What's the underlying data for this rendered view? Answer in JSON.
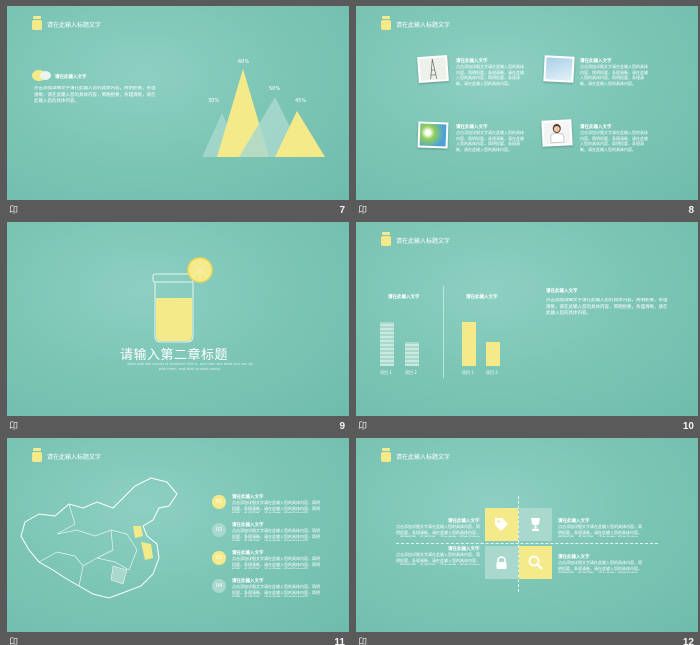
{
  "colors": {
    "teal": "#7dc6b6",
    "yellow": "#f5ea8a",
    "pale_teal": "#a9d8cd",
    "white": "#ffffff"
  },
  "header_title": "请在此输入标题文字",
  "filler_text": "点击添加详细文字请在此输入您的具体内容，简明扼要，条理清晰，请在此输入您的具体内容，简明扼要，条理清晰，请在此输入您的具体内容。",
  "slides": [
    {
      "page": "7",
      "label": "请在此输入文字",
      "percents": [
        "60%",
        "30%",
        "50%",
        "45%"
      ]
    },
    {
      "page": "8",
      "items": [
        {
          "title": "请在此输入文字",
          "photo": "eiffel-tower-sketch"
        },
        {
          "title": "请在此输入文字",
          "photo": "sky"
        },
        {
          "title": "请在此输入文字",
          "photo": "flowers"
        },
        {
          "title": "请在此输入文字",
          "photo": "woman"
        }
      ]
    },
    {
      "page": "9",
      "chapter_title": "请输入第二章标题",
      "subtitle": "Start with the results of whatever this is, and then see what you can do with them, and stick to what works."
    },
    {
      "page": "10",
      "chart_titles": [
        "请在此输入文字",
        "请在此输入文字"
      ],
      "bar_labels": [
        "项目 1",
        "项目 2",
        "项目 1",
        "项目 2"
      ],
      "right_title": "请在此输入文字"
    },
    {
      "page": "11",
      "items": [
        {
          "num": "01",
          "title": "请在此输入文字"
        },
        {
          "num": "02",
          "title": "请在此输入文字"
        },
        {
          "num": "03",
          "title": "请在此输入文字"
        },
        {
          "num": "04",
          "title": "请在此输入文字"
        }
      ]
    },
    {
      "page": "12",
      "left_top": "请在此输入文字",
      "left_bottom": "请在此输入文字",
      "right_top": "请在此输入文字",
      "right_bottom": "请在此输入文字",
      "icons": [
        "tag-icon",
        "trophy-icon",
        "lock-icon",
        "search-icon"
      ]
    }
  ],
  "footer_icon": "slide-view-icon"
}
